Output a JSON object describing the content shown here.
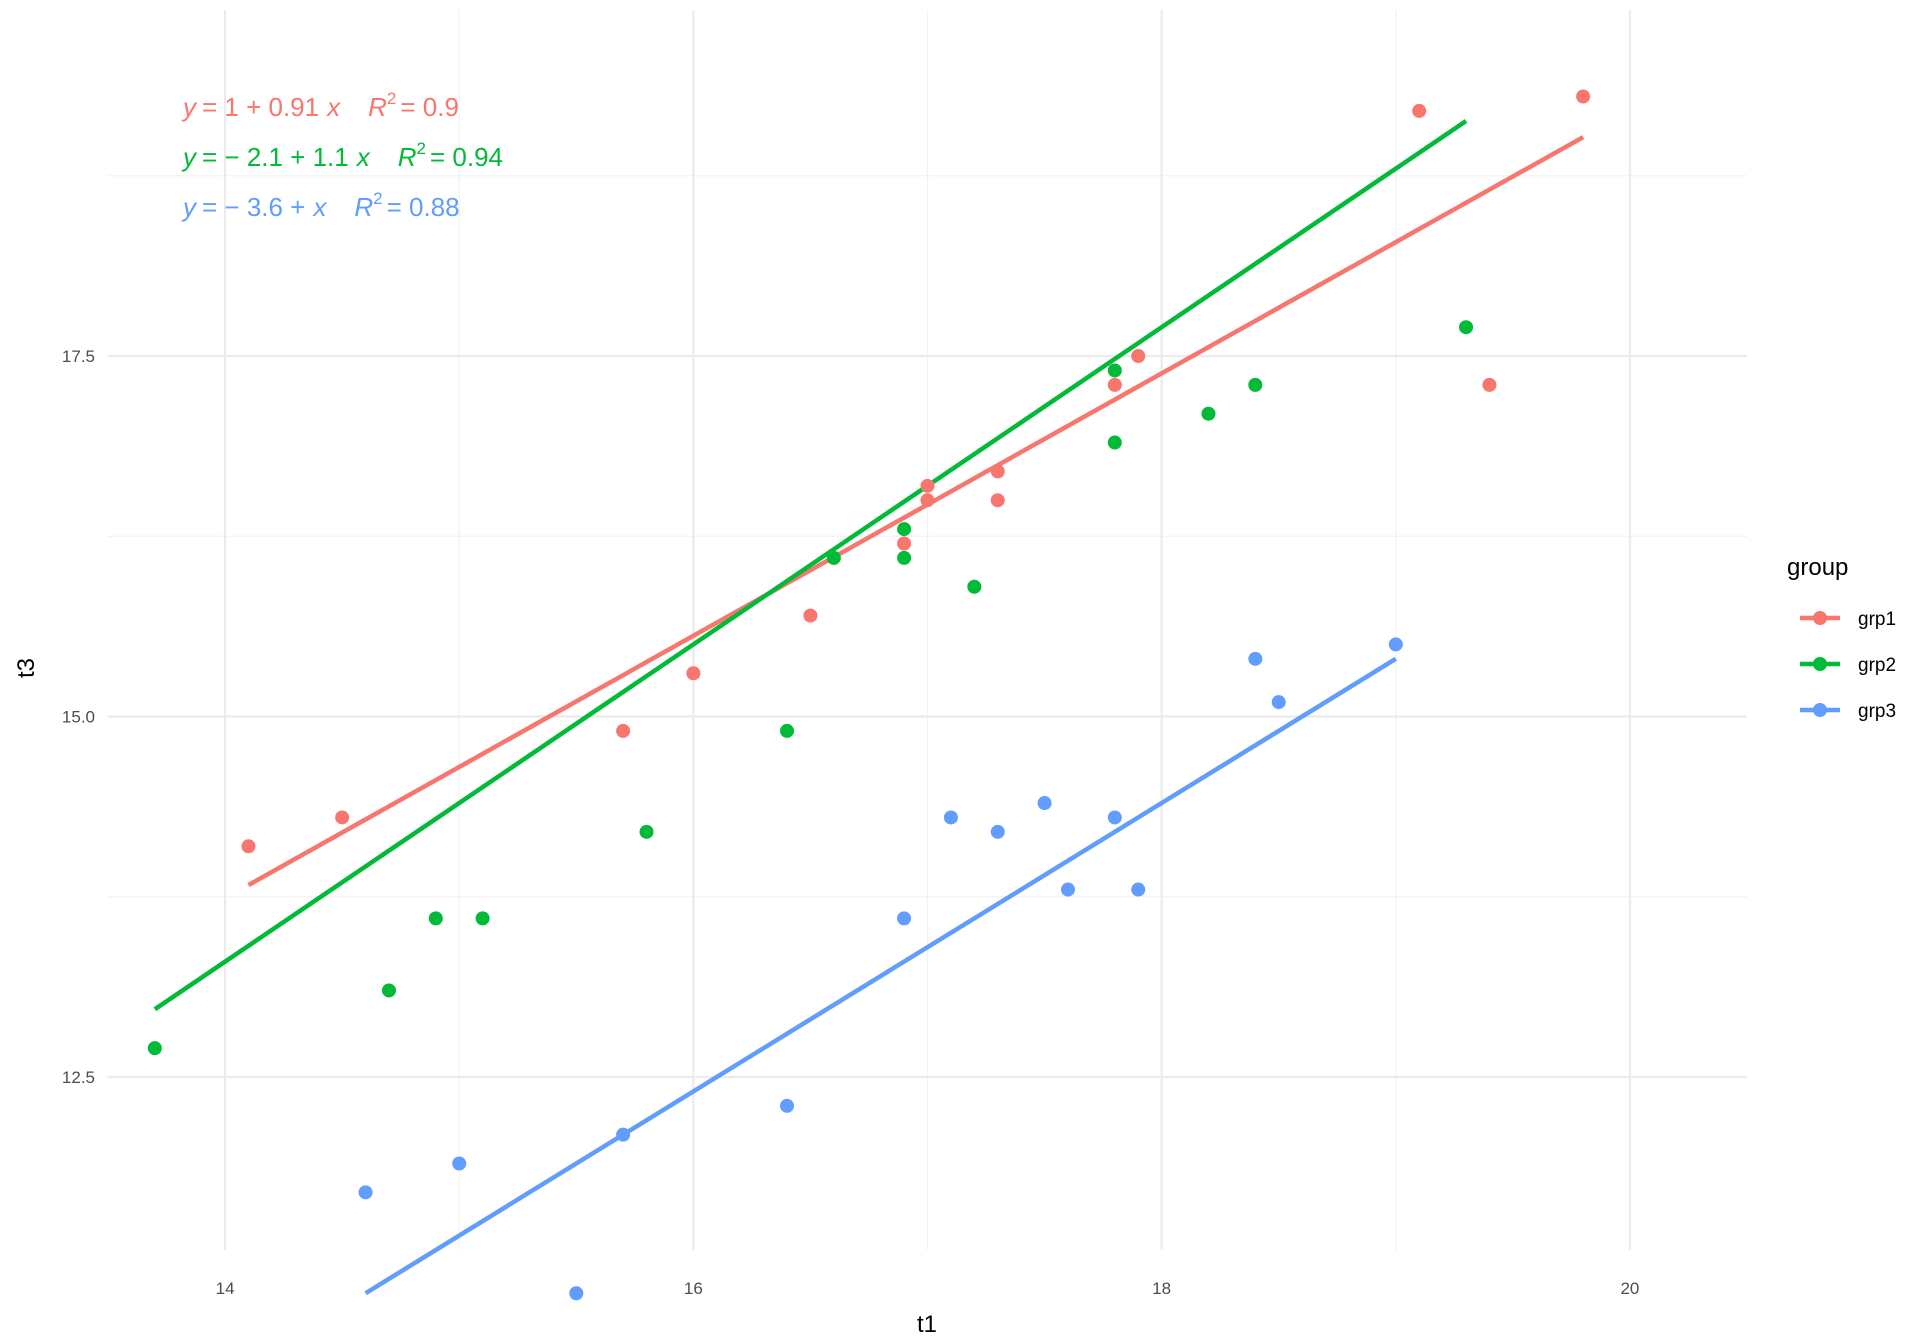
{
  "chart_data": {
    "type": "scatter",
    "xlabel": "t1",
    "ylabel": "t3",
    "xlim": [
      13.5,
      20.5
    ],
    "ylim": [
      11.3,
      19.9
    ],
    "x_ticks": [
      14,
      16,
      18,
      20
    ],
    "x_tick_labels": [
      "14",
      "16",
      "18",
      "20"
    ],
    "y_ticks": [
      12.5,
      15.0,
      17.5
    ],
    "y_tick_labels": [
      "12.5",
      "15.0",
      "17.5"
    ],
    "grid": true,
    "legend": {
      "title": "group",
      "position": "right"
    },
    "series": [
      {
        "name": "grp1",
        "color": "#F8766D",
        "points": [
          [
            14.1,
            14.1
          ],
          [
            14.5,
            14.3
          ],
          [
            15.7,
            14.9
          ],
          [
            16.0,
            15.3
          ],
          [
            16.5,
            15.7
          ],
          [
            16.9,
            16.2
          ],
          [
            17.0,
            16.5
          ],
          [
            17.0,
            16.6
          ],
          [
            17.3,
            16.7
          ],
          [
            17.3,
            16.5
          ],
          [
            17.8,
            17.3
          ],
          [
            17.9,
            17.5
          ],
          [
            19.1,
            19.2
          ],
          [
            19.4,
            17.3
          ],
          [
            19.8,
            19.3
          ]
        ],
        "fit": {
          "intercept": 1.0,
          "slope": 0.91,
          "x_range": [
            14.1,
            19.8
          ]
        },
        "equation": {
          "y": "y",
          "eq": "= 1 + 0.91",
          "x": "x",
          "r2": "R",
          "r2_value": "= 0.9"
        }
      },
      {
        "name": "grp2",
        "color": "#00BA38",
        "points": [
          [
            13.7,
            12.7
          ],
          [
            14.7,
            13.1
          ],
          [
            14.9,
            13.6
          ],
          [
            15.1,
            13.6
          ],
          [
            15.8,
            14.2
          ],
          [
            16.4,
            14.9
          ],
          [
            16.6,
            16.1
          ],
          [
            16.9,
            16.1
          ],
          [
            16.9,
            16.3
          ],
          [
            17.2,
            15.9
          ],
          [
            17.8,
            16.9
          ],
          [
            17.8,
            17.4
          ],
          [
            18.2,
            17.1
          ],
          [
            18.4,
            17.3
          ],
          [
            19.3,
            17.7
          ]
        ],
        "fit": {
          "intercept": -2.1,
          "slope": 1.1,
          "x_range": [
            13.7,
            19.3
          ]
        },
        "equation": {
          "y": "y",
          "eq": "= − 2.1 + 1.1",
          "x": "x",
          "r2": "R",
          "r2_value": "= 0.94"
        }
      },
      {
        "name": "grp3",
        "color": "#619CFF",
        "points": [
          [
            14.6,
            11.7
          ],
          [
            15.0,
            11.9
          ],
          [
            15.5,
            11.0
          ],
          [
            15.7,
            12.1
          ],
          [
            16.4,
            12.3
          ],
          [
            16.9,
            13.6
          ],
          [
            17.1,
            14.3
          ],
          [
            17.3,
            14.2
          ],
          [
            17.5,
            14.4
          ],
          [
            17.6,
            13.8
          ],
          [
            17.8,
            14.3
          ],
          [
            17.9,
            13.8
          ],
          [
            18.4,
            15.4
          ],
          [
            18.5,
            15.1
          ],
          [
            19.0,
            15.5
          ]
        ],
        "fit": {
          "intercept": -3.6,
          "slope": 1.0,
          "x_range": [
            14.6,
            19.0
          ]
        },
        "equation": {
          "y": "y",
          "eq": "= − 3.6 +",
          "x": "x",
          "r2": "R",
          "r2_value": "= 0.88"
        }
      }
    ]
  }
}
